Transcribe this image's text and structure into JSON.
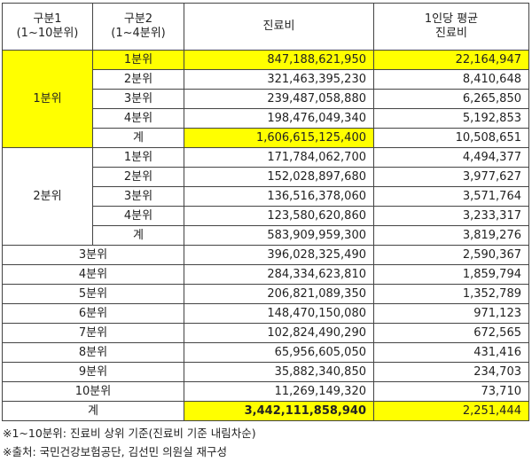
{
  "header": {
    "group1": [
      "구분1",
      "(1~10분위)"
    ],
    "group2": [
      "구분2",
      "(1~4분위)"
    ],
    "expense": "진료비",
    "per_person": [
      "1인당 평균",
      "진료비"
    ]
  },
  "group_1": {
    "label": "1분위",
    "rows": [
      {
        "sub": "1분위",
        "expense": "847,188,621,950",
        "per_person": "22,164,947"
      },
      {
        "sub": "2분위",
        "expense": "321,463,395,230",
        "per_person": "8,410,648"
      },
      {
        "sub": "3분위",
        "expense": "239,487,058,880",
        "per_person": "6,265,850"
      },
      {
        "sub": "4분위",
        "expense": "198,476,049,340",
        "per_person": "5,192,853"
      },
      {
        "sub": "계",
        "expense": "1,606,615,125,400",
        "per_person": "10,508,651"
      }
    ]
  },
  "group_2": {
    "label": "2분위",
    "rows": [
      {
        "sub": "1분위",
        "expense": "171,784,062,700",
        "per_person": "4,494,377"
      },
      {
        "sub": "2분위",
        "expense": "152,028,897,680",
        "per_person": "3,977,627"
      },
      {
        "sub": "3분위",
        "expense": "136,516,378,060",
        "per_person": "3,571,764"
      },
      {
        "sub": "4분위",
        "expense": "123,580,620,860",
        "per_person": "3,233,317"
      },
      {
        "sub": "계",
        "expense": "583,909,959,300",
        "per_person": "3,819,276"
      }
    ]
  },
  "deciles": [
    {
      "label": "3분위",
      "expense": "396,028,325,490",
      "per_person": "2,590,367"
    },
    {
      "label": "4분위",
      "expense": "284,334,623,810",
      "per_person": "1,859,794"
    },
    {
      "label": "5분위",
      "expense": "206,821,089,350",
      "per_person": "1,352,789"
    },
    {
      "label": "6분위",
      "expense": "148,470,150,080",
      "per_person": "971,123"
    },
    {
      "label": "7분위",
      "expense": "102,824,490,290",
      "per_person": "672,565"
    },
    {
      "label": "8분위",
      "expense": "65,956,605,050",
      "per_person": "431,416"
    },
    {
      "label": "9분위",
      "expense": "35,882,340,850",
      "per_person": "234,703"
    },
    {
      "label": "10분위",
      "expense": "11,269,149,320",
      "per_person": "73,710"
    }
  ],
  "total": {
    "label": "계",
    "expense": "3,442,111,858,940",
    "per_person": "2,251,444"
  },
  "notes": [
    "※1~10분위: 진료비 상위 기준(진료비 기준 내림차순)",
    "※출처: 국민건강보험공단, 김선민 의원실 재구성"
  ],
  "colors": {
    "highlight": "#ffff00",
    "border": "#444444"
  }
}
